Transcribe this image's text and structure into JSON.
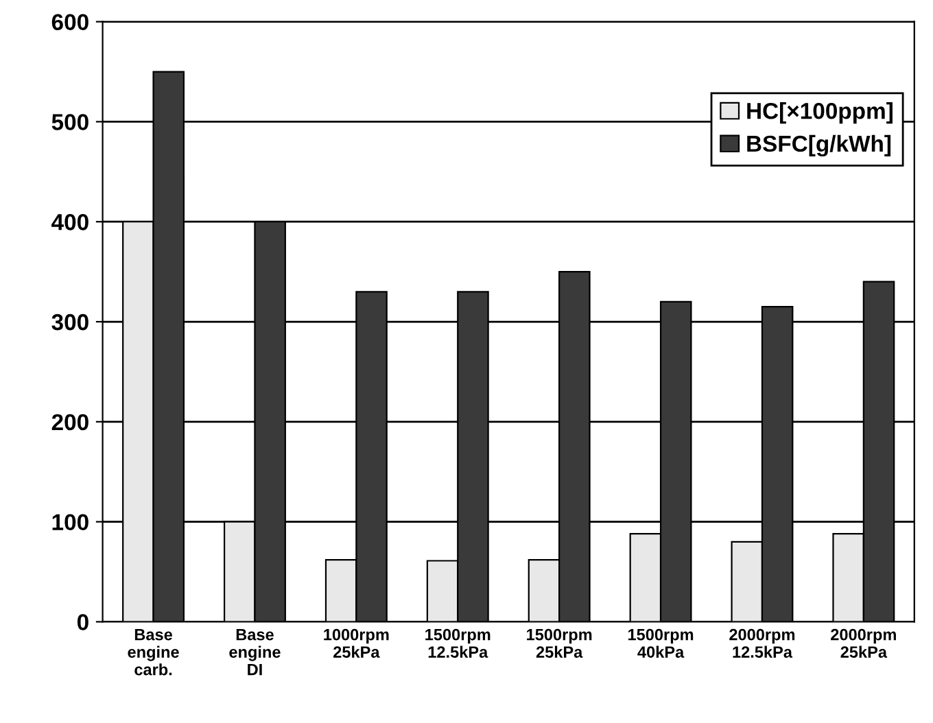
{
  "chart_data": {
    "type": "bar",
    "categories": [
      "Base\nengine\ncarb.",
      "Base\nengine\nDI",
      "1000rpm\n25kPa",
      "1500rpm\n12.5kPa",
      "1500rpm\n25kPa",
      "1500rpm\n40kPa",
      "2000rpm\n12.5kPa",
      "2000rpm\n25kPa"
    ],
    "series": [
      {
        "name": "HC[×100ppm]",
        "color": "#e8e8e8",
        "values": [
          400,
          100,
          62,
          61,
          62,
          88,
          80,
          88
        ]
      },
      {
        "name": "BSFC[g/kWh]",
        "color": "#3a3a3a",
        "values": [
          550,
          400,
          330,
          330,
          350,
          320,
          315,
          340
        ]
      }
    ],
    "ylim": [
      0,
      600
    ],
    "yticks": [
      0,
      100,
      200,
      300,
      400,
      500,
      600
    ],
    "grid": "y",
    "legend": "top right"
  }
}
